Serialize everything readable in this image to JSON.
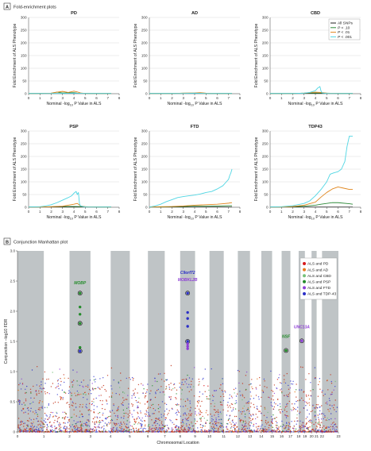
{
  "panel_a": {
    "letter": "A",
    "title": "Fold-enrichment plots"
  },
  "panel_b": {
    "letter": "B",
    "title": "Conjunction Manhattan plot"
  },
  "colors": {
    "all_snps": "#222222",
    "p10": "#2e8b3a",
    "p01": "#e0861e",
    "p001": "#4fd6e3",
    "lines_grid": "#c9c9c9"
  },
  "fold_legend": [
    "All SNPs",
    "P < .10",
    "P < .01",
    "P < .001"
  ],
  "manhattan_legend": [
    {
      "label": "ALS and PD",
      "color": "#d7191c"
    },
    {
      "label": "ALS and AD",
      "color": "#e8791e"
    },
    {
      "label": "ALS and CBD",
      "color": "#76c17a"
    },
    {
      "label": "ALS and PSP",
      "color": "#238b2a"
    },
    {
      "label": "ALS and FTD",
      "color": "#8e3fd6"
    },
    {
      "label": "ALS and TDP-43",
      "color": "#2b2fc7"
    }
  ],
  "chart_data": [
    {
      "type": "line",
      "title": "PD",
      "xlabel": "Nominal -log10 P Value in ALS",
      "ylabel": "Fold Enrichment of ALS Phenotype",
      "xlim": [
        0,
        8
      ],
      "ylim": [
        0,
        300
      ],
      "xticks": [
        0,
        1,
        2,
        3,
        4,
        5,
        6,
        7,
        8
      ],
      "yticks": [
        0,
        50,
        100,
        150,
        200,
        250,
        300
      ],
      "series": [
        {
          "name": "All SNPs",
          "x": [
            0,
            1,
            2,
            3,
            4,
            5,
            6,
            7.3
          ],
          "y": [
            1,
            1,
            1,
            1,
            1,
            1,
            1,
            1
          ]
        },
        {
          "name": "P < .10",
          "x": [
            0,
            1,
            2,
            2.5,
            3,
            4,
            4.3,
            5,
            7.3
          ],
          "y": [
            1,
            1,
            2,
            6,
            3,
            4,
            2,
            1,
            1
          ]
        },
        {
          "name": "P < .01",
          "x": [
            0,
            1,
            2,
            2.5,
            3,
            3.5,
            4,
            4.3,
            4.6,
            5,
            7.3
          ],
          "y": [
            1,
            1,
            2,
            6,
            9,
            5,
            10,
            7,
            3,
            1,
            1
          ]
        },
        {
          "name": "P < .001",
          "x": [
            0,
            1,
            2,
            3,
            4,
            5,
            6,
            7.3
          ],
          "y": [
            1,
            1,
            1,
            1,
            2,
            1,
            1,
            1
          ]
        }
      ]
    },
    {
      "type": "line",
      "title": "AD",
      "xlabel": "Nominal -log10 P Value in ALS",
      "ylabel": "Fold Enrichment of ALS Phenotype",
      "xlim": [
        0,
        8
      ],
      "ylim": [
        0,
        300
      ],
      "xticks": [
        0,
        1,
        2,
        3,
        4,
        5,
        6,
        7,
        8
      ],
      "yticks": [
        0,
        50,
        100,
        150,
        200,
        250,
        300
      ],
      "series": [
        {
          "name": "All SNPs",
          "x": [
            0,
            1,
            2,
            3,
            4,
            5,
            6,
            7.3
          ],
          "y": [
            1,
            1,
            1,
            1,
            1,
            1,
            1,
            1
          ]
        },
        {
          "name": "P < .10",
          "x": [
            0,
            1,
            2,
            3,
            4,
            5,
            6,
            7.3
          ],
          "y": [
            1,
            1,
            1,
            2,
            2,
            1,
            1,
            1
          ]
        },
        {
          "name": "P < .01",
          "x": [
            0,
            1,
            2,
            3,
            4,
            4.5,
            5,
            6,
            7.3
          ],
          "y": [
            1,
            1,
            1,
            2,
            3,
            4,
            2,
            1,
            1
          ]
        },
        {
          "name": "P < .001",
          "x": [
            0,
            1,
            2,
            3,
            4,
            5,
            6,
            7.3
          ],
          "y": [
            1,
            1,
            1,
            1,
            2,
            1,
            1,
            1
          ]
        }
      ]
    },
    {
      "type": "line",
      "title": "CBD",
      "xlabel": "Nominal -log10 P Value in ALS",
      "ylabel": "Fold Enrichment of ALS Phenotype",
      "xlim": [
        0,
        8
      ],
      "ylim": [
        0,
        300
      ],
      "xticks": [
        0,
        1,
        2,
        3,
        4,
        5,
        6,
        7,
        8
      ],
      "yticks": [
        0,
        50,
        100,
        150,
        200,
        250,
        300
      ],
      "series": [
        {
          "name": "All SNPs",
          "x": [
            0,
            1,
            2,
            3,
            4,
            5,
            6,
            7.3
          ],
          "y": [
            1,
            1,
            1,
            1,
            1,
            1,
            1,
            1
          ]
        },
        {
          "name": "P < .10",
          "x": [
            0,
            1,
            2,
            3,
            4,
            5,
            6,
            7.3
          ],
          "y": [
            1,
            1,
            1,
            2,
            3,
            2,
            1,
            1
          ]
        },
        {
          "name": "P < .01",
          "x": [
            0,
            1,
            2,
            3,
            3.5,
            4,
            4.5,
            5,
            7.3
          ],
          "y": [
            1,
            1,
            1,
            2,
            4,
            6,
            5,
            2,
            1
          ]
        },
        {
          "name": "P < .001",
          "x": [
            0,
            1,
            2,
            3,
            3.5,
            4,
            4.2,
            4.4,
            4.5,
            4.6,
            5,
            7.3
          ],
          "y": [
            1,
            1,
            1,
            2,
            5,
            12,
            22,
            28,
            10,
            3,
            1,
            1
          ]
        }
      ]
    },
    {
      "type": "line",
      "title": "PSP",
      "xlabel": "Nominal -log10 P Value in ALS",
      "ylabel": "Fold Enrichment of ALS Phenotype",
      "xlim": [
        0,
        8
      ],
      "ylim": [
        0,
        300
      ],
      "xticks": [
        0,
        1,
        2,
        3,
        4,
        5,
        6,
        7,
        8
      ],
      "yticks": [
        0,
        50,
        100,
        150,
        200,
        250,
        300
      ],
      "series": [
        {
          "name": "All SNPs",
          "x": [
            0,
            1,
            2,
            3,
            4,
            5,
            6,
            7.3
          ],
          "y": [
            1,
            1,
            1,
            1,
            1,
            1,
            1,
            1
          ]
        },
        {
          "name": "P < .10",
          "x": [
            0,
            1,
            2,
            3,
            4,
            5,
            6,
            7.3
          ],
          "y": [
            1,
            1,
            2,
            3,
            3,
            2,
            1,
            1
          ]
        },
        {
          "name": "P < .01",
          "x": [
            0,
            1,
            2,
            3,
            3.5,
            4,
            4.3,
            4.6,
            5,
            7.3
          ],
          "y": [
            1,
            1,
            2,
            4,
            8,
            12,
            15,
            5,
            2,
            1
          ]
        },
        {
          "name": "P < .001",
          "x": [
            0,
            1,
            1.5,
            2,
            2.5,
            3,
            3.5,
            3.8,
            4,
            4.2,
            4.3,
            4.4,
            4.5,
            4.6,
            4.8,
            5,
            7.3
          ],
          "y": [
            1,
            2,
            5,
            10,
            18,
            28,
            38,
            45,
            55,
            62,
            50,
            58,
            12,
            5,
            3,
            1,
            1
          ]
        }
      ]
    },
    {
      "type": "line",
      "title": "FTD",
      "xlabel": "Nominal -log10 P Value in ALS",
      "ylabel": "Fold Enrichment of ALS Phenotype",
      "xlim": [
        0,
        8
      ],
      "ylim": [
        0,
        300
      ],
      "xticks": [
        0,
        1,
        2,
        3,
        4,
        5,
        6,
        7,
        8
      ],
      "yticks": [
        0,
        50,
        100,
        150,
        200,
        250,
        300
      ],
      "series": [
        {
          "name": "All SNPs",
          "x": [
            0,
            1,
            2,
            3,
            4,
            5,
            6,
            7.3
          ],
          "y": [
            1,
            1,
            1,
            1,
            1,
            1,
            1,
            1
          ]
        },
        {
          "name": "P < .10",
          "x": [
            0,
            1,
            2,
            3,
            4,
            5,
            6,
            7,
            7.3
          ],
          "y": [
            1,
            1,
            2,
            3,
            4,
            4,
            5,
            6,
            6
          ]
        },
        {
          "name": "P < .01",
          "x": [
            0,
            1,
            2,
            3,
            4,
            5,
            6,
            6.5,
            7,
            7.3
          ],
          "y": [
            1,
            2,
            3,
            5,
            8,
            10,
            12,
            14,
            16,
            18
          ]
        },
        {
          "name": "P < .001",
          "x": [
            0,
            0.5,
            1,
            1.5,
            2,
            2.5,
            3,
            3.5,
            4,
            4.5,
            5,
            5.5,
            6,
            6.5,
            6.8,
            7,
            7.1,
            7.2,
            7.3
          ],
          "y": [
            1,
            5,
            12,
            22,
            30,
            38,
            42,
            45,
            48,
            52,
            58,
            62,
            72,
            85,
            100,
            110,
            125,
            135,
            150
          ]
        }
      ]
    },
    {
      "type": "line",
      "title": "TDP43",
      "xlabel": "Nominal -log10 P Value in ALS",
      "ylabel": "Fold Enrichment of ALS Phenotype",
      "xlim": [
        0,
        8
      ],
      "ylim": [
        0,
        300
      ],
      "xticks": [
        0,
        1,
        2,
        3,
        4,
        5,
        6,
        7,
        8
      ],
      "yticks": [
        0,
        50,
        100,
        150,
        200,
        250,
        300
      ],
      "series": [
        {
          "name": "All SNPs",
          "x": [
            0,
            1,
            2,
            3,
            4,
            5,
            6,
            7.3
          ],
          "y": [
            1,
            1,
            1,
            1,
            1,
            1,
            1,
            1
          ]
        },
        {
          "name": "P < .10",
          "x": [
            0,
            1,
            2,
            3,
            4,
            4.5,
            5,
            5.5,
            6,
            7,
            7.3
          ],
          "y": [
            1,
            1,
            2,
            4,
            8,
            12,
            15,
            18,
            18,
            14,
            12
          ]
        },
        {
          "name": "P < .01",
          "x": [
            0,
            1,
            2,
            3,
            4,
            4.5,
            5,
            5.5,
            6,
            6.5,
            7,
            7.3
          ],
          "y": [
            1,
            1,
            3,
            8,
            20,
            40,
            58,
            72,
            80,
            75,
            70,
            70
          ]
        },
        {
          "name": "P < .001",
          "x": [
            0,
            1,
            2,
            3,
            3.5,
            4,
            4.5,
            5,
            5.3,
            5.6,
            6,
            6.3,
            6.6,
            6.8,
            7,
            7.3
          ],
          "y": [
            1,
            2,
            6,
            15,
            25,
            45,
            70,
            100,
            130,
            135,
            140,
            150,
            180,
            240,
            280,
            280
          ]
        }
      ]
    },
    {
      "type": "scatter",
      "title": "Conjunction Manhattan plot",
      "xlabel": "Chromosomal Location",
      "ylabel": "Conjunction –log10 FDR",
      "ylim": [
        0,
        3.0
      ],
      "yticks": [
        "0",
        "0.5",
        "1.0",
        "1.5",
        "2.0",
        "2.5",
        "3.0"
      ],
      "chromosomes": [
        "0",
        "1",
        "2",
        "3",
        "4",
        "5",
        "6",
        "7",
        "8",
        "9",
        "10",
        "11",
        "12",
        "13",
        "14",
        "15",
        "16",
        "17",
        "18",
        "19",
        "20",
        "21",
        "22",
        "23"
      ],
      "annotations": [
        {
          "label": "MOBP",
          "chrom": 3,
          "y": 2.45,
          "color": "#238b2a"
        },
        {
          "label": "C9orf72",
          "chrom": 9,
          "y": 2.62,
          "color": "#2b2fc7"
        },
        {
          "label": "MOBKL2B",
          "chrom": 9,
          "y": 2.5,
          "color": "#8e3fd6"
        },
        {
          "label": "NSF",
          "chrom": 17,
          "y": 1.56,
          "color": "#238b2a"
        },
        {
          "label": "UNC13A",
          "chrom": 19,
          "y": 1.72,
          "color": "#8e3fd6"
        }
      ],
      "highlighted_points": [
        {
          "chrom": 3,
          "y": 2.3,
          "series": "ALS and PSP",
          "circled": true
        },
        {
          "chrom": 3,
          "y": 2.07,
          "series": "ALS and PSP",
          "circled": false
        },
        {
          "chrom": 3,
          "y": 1.95,
          "series": "ALS and PSP",
          "circled": false
        },
        {
          "chrom": 3,
          "y": 1.8,
          "series": "ALS and PSP",
          "circled": true
        },
        {
          "chrom": 3,
          "y": 1.4,
          "series": "ALS and PSP",
          "circled": false
        },
        {
          "chrom": 3,
          "y": 1.34,
          "series": "ALS and TDP-43",
          "circled": true
        },
        {
          "chrom": 9,
          "y": 2.3,
          "series": "ALS and TDP-43",
          "circled": true
        },
        {
          "chrom": 9,
          "y": 1.98,
          "series": "ALS and TDP-43",
          "circled": false
        },
        {
          "chrom": 9,
          "y": 1.88,
          "series": "ALS and TDP-43",
          "circled": false
        },
        {
          "chrom": 9,
          "y": 1.75,
          "series": "ALS and TDP-43",
          "circled": false
        },
        {
          "chrom": 9,
          "y": 1.5,
          "series": "ALS and TDP-43",
          "circled": true
        },
        {
          "chrom": 9,
          "y": 1.46,
          "series": "ALS and FTD",
          "circled": false
        },
        {
          "chrom": 9,
          "y": 1.42,
          "series": "ALS and FTD",
          "circled": false
        },
        {
          "chrom": 9,
          "y": 1.38,
          "series": "ALS and FTD",
          "circled": false
        },
        {
          "chrom": 17,
          "y": 1.35,
          "series": "ALS and PSP",
          "circled": true
        },
        {
          "chrom": 19,
          "y": 1.51,
          "series": "ALS and FTD",
          "circled": true
        }
      ]
    }
  ]
}
